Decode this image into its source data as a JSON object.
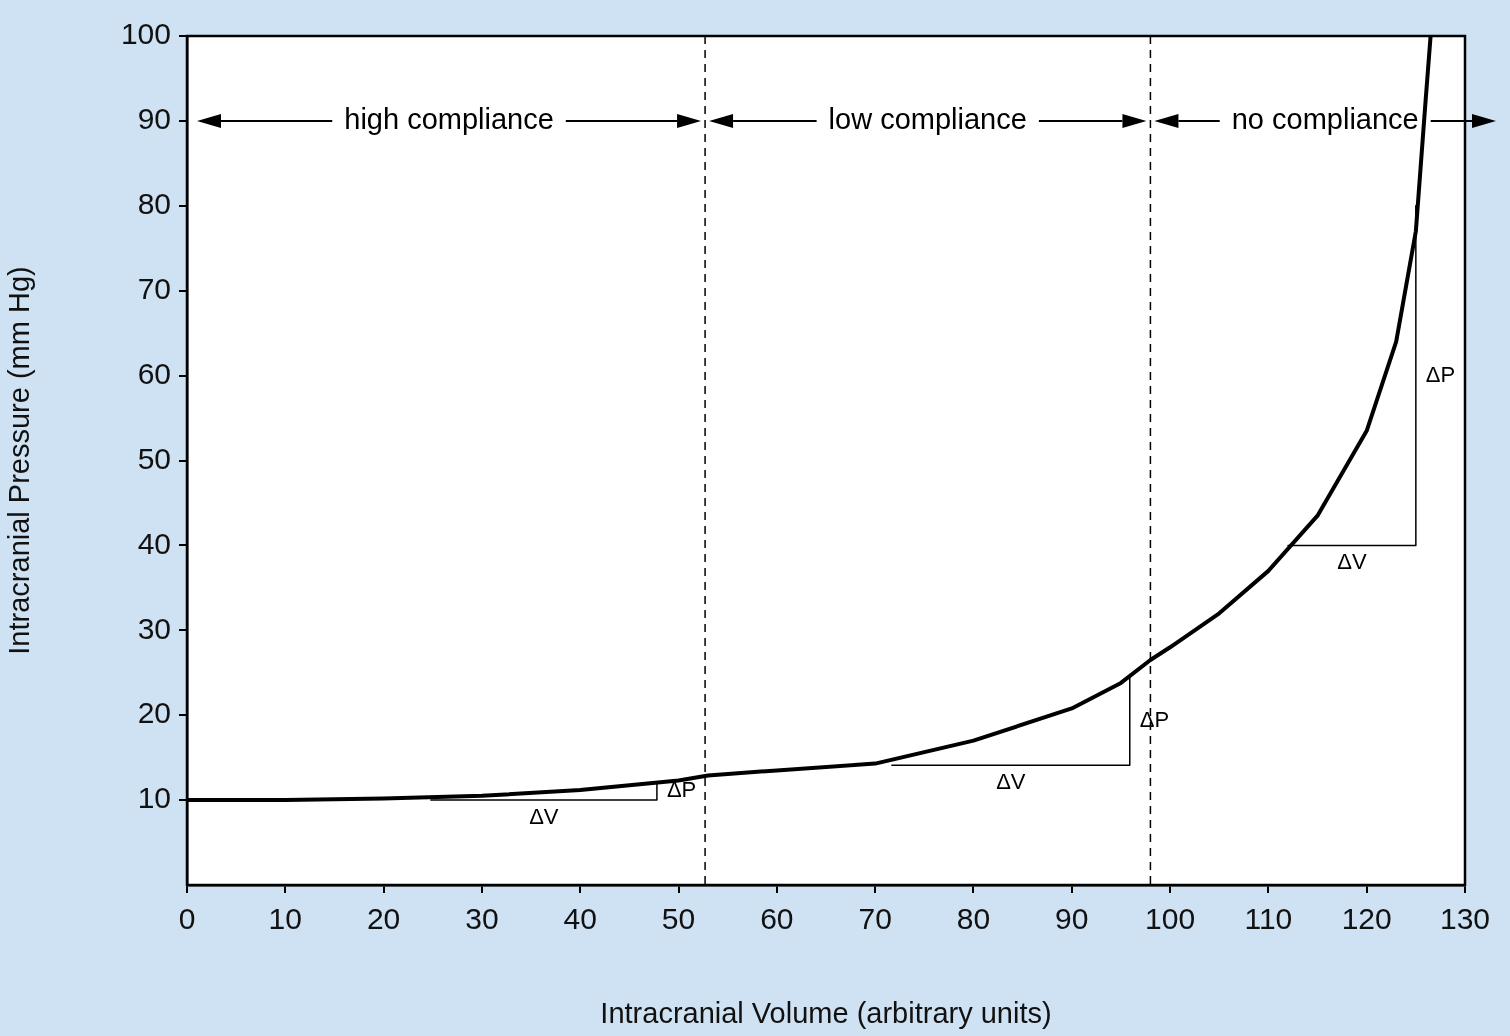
{
  "chart_data": {
    "type": "line",
    "xlabel": "Intracranial Volume (arbitrary units)",
    "ylabel": "Intracranial Pressure (mm Hg)",
    "xlim": [
      0,
      130
    ],
    "xticks": [
      0,
      10,
      20,
      30,
      40,
      50,
      60,
      70,
      80,
      90,
      100,
      110,
      120,
      130
    ],
    "ylim": [
      0,
      100
    ],
    "yticks": [
      10,
      20,
      30,
      40,
      50,
      60,
      70,
      80,
      90,
      100
    ],
    "grid": false,
    "legend": false,
    "marker": "none",
    "series": [
      {
        "color": "#000000",
        "x": [
          0,
          10,
          20,
          30,
          40,
          50,
          53,
          60,
          70,
          80,
          90,
          95,
          98,
          100,
          105,
          110,
          115,
          120,
          123,
          125,
          126,
          126.5
        ],
        "values": [
          10,
          10,
          10.2,
          10.5,
          11.2,
          12.3,
          12.9,
          13.5,
          14.3,
          17,
          20.8,
          23.8,
          26.5,
          28,
          32,
          37,
          43.5,
          53.5,
          64,
          77,
          92.5,
          100
        ]
      },
      {
        "color": "#000000",
        "x": [
          24.8,
          47.8,
          47.8
        ],
        "values": [
          10,
          10,
          12.1
        ]
      },
      {
        "color": "#000000",
        "x": [
          71.7,
          95.9,
          95.9
        ],
        "values": [
          14.1,
          14.1,
          24.5
        ]
      },
      {
        "color": "#000000",
        "x": [
          112,
          125,
          125
        ],
        "values": [
          40,
          40,
          80
        ]
      }
    ],
    "ref_lines": [
      {
        "axis": "x",
        "value": 52.7,
        "line_style": "dashed",
        "color": "#000000"
      },
      {
        "axis": "x",
        "value": 98,
        "line_style": "dashed",
        "color": "#000000"
      }
    ],
    "annotations": [
      "high compliance",
      "low compliance",
      "no compliance",
      "ΔV",
      "ΔP",
      "ΔV",
      "ΔP",
      "ΔV",
      "ΔP"
    ]
  }
}
